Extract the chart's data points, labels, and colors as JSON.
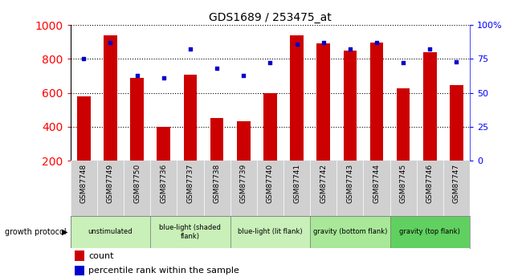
{
  "title": "GDS1689 / 253475_at",
  "samples": [
    "GSM87748",
    "GSM87749",
    "GSM87750",
    "GSM87736",
    "GSM87737",
    "GSM87738",
    "GSM87739",
    "GSM87740",
    "GSM87741",
    "GSM87742",
    "GSM87743",
    "GSM87744",
    "GSM87745",
    "GSM87746",
    "GSM87747"
  ],
  "counts": [
    580,
    940,
    690,
    400,
    705,
    450,
    430,
    600,
    940,
    890,
    850,
    895,
    625,
    840,
    645
  ],
  "percentile_ranks": [
    75,
    87,
    63,
    61,
    82,
    68,
    63,
    72,
    86,
    87,
    82,
    87,
    72,
    82,
    73
  ],
  "groups": [
    {
      "label": "unstimulated",
      "start": 0,
      "end": 3,
      "color": "#c8f0b8"
    },
    {
      "label": "blue-light (shaded\nflank)",
      "start": 3,
      "end": 6,
      "color": "#c8f0b8"
    },
    {
      "label": "blue-light (lit flank)",
      "start": 6,
      "end": 9,
      "color": "#c8f0b8"
    },
    {
      "label": "gravity (bottom flank)",
      "start": 9,
      "end": 12,
      "color": "#a8e898"
    },
    {
      "label": "gravity (top flank)",
      "start": 12,
      "end": 15,
      "color": "#60d060"
    }
  ],
  "bar_color": "#cc0000",
  "dot_color": "#0000cc",
  "ylim_left": [
    200,
    1000
  ],
  "ylim_right": [
    0,
    100
  ],
  "yticks_left": [
    200,
    400,
    600,
    800,
    1000
  ],
  "yticks_right": [
    0,
    25,
    50,
    75,
    100
  ],
  "legend_count_color": "#cc0000",
  "legend_dot_color": "#0000cc",
  "sample_bg": "#d0d0d0",
  "plot_bg": "#ffffff"
}
